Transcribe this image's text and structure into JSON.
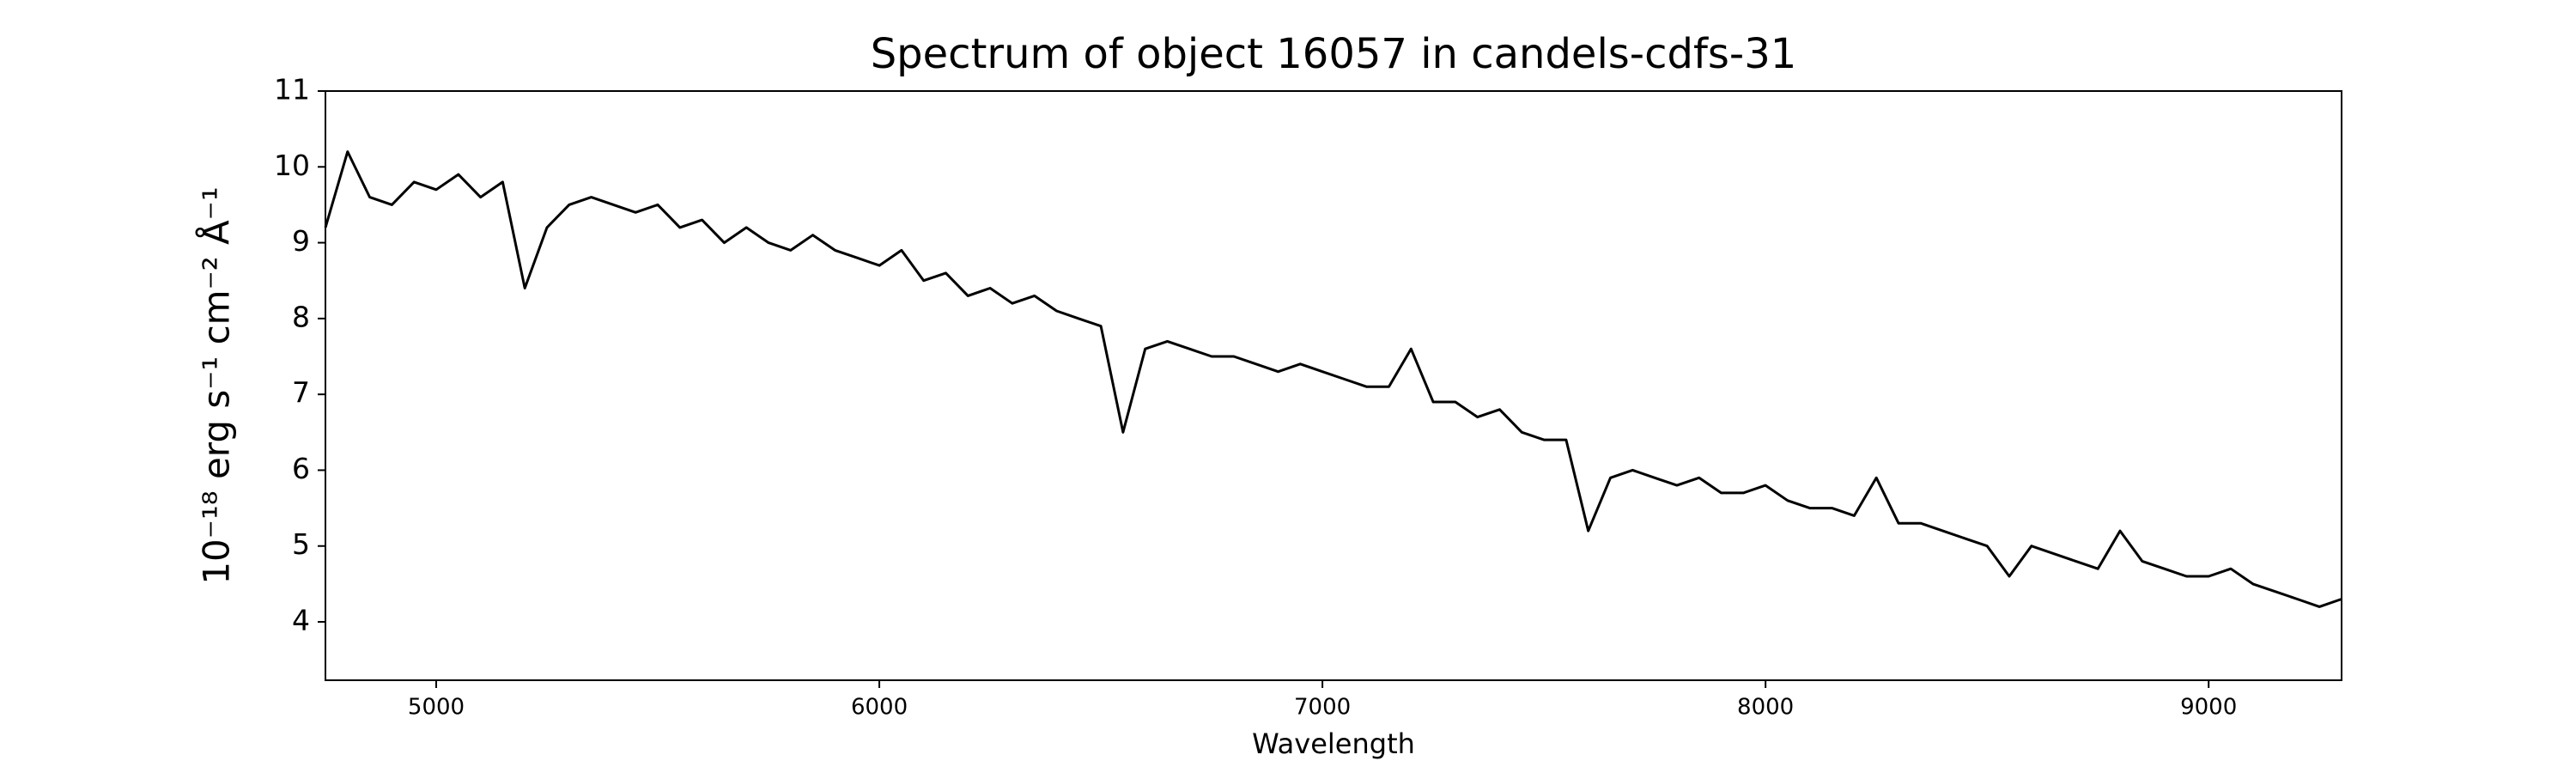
{
  "chart_data": {
    "type": "line",
    "title": "Spectrum of object 16057 in candels-cdfs-31",
    "xlabel": "Wavelength",
    "ylabel": "10⁻¹⁸ erg s⁻¹ cm⁻² Å⁻¹",
    "x": [
      4750,
      4800,
      4850,
      4900,
      4950,
      5000,
      5050,
      5100,
      5150,
      5200,
      5250,
      5300,
      5350,
      5400,
      5450,
      5500,
      5550,
      5600,
      5650,
      5700,
      5750,
      5800,
      5850,
      5900,
      5950,
      6000,
      6050,
      6100,
      6150,
      6200,
      6250,
      6300,
      6350,
      6400,
      6450,
      6500,
      6550,
      6600,
      6650,
      6700,
      6750,
      6800,
      6850,
      6900,
      6950,
      7000,
      7050,
      7100,
      7150,
      7200,
      7250,
      7300,
      7350,
      7400,
      7450,
      7500,
      7550,
      7600,
      7650,
      7700,
      7750,
      7800,
      7850,
      7900,
      7950,
      8000,
      8050,
      8100,
      8150,
      8200,
      8250,
      8300,
      8350,
      8400,
      8450,
      8500,
      8550,
      8600,
      8650,
      8700,
      8750,
      8800,
      8850,
      8900,
      8950,
      9000,
      9050,
      9100,
      9150,
      9200,
      9250,
      9300
    ],
    "series": [
      {
        "name": "spectrum",
        "color": "#000000",
        "values": [
          9.2,
          10.2,
          9.6,
          9.5,
          9.8,
          9.7,
          9.9,
          9.6,
          9.8,
          8.4,
          9.2,
          9.5,
          9.6,
          9.5,
          9.4,
          9.5,
          9.2,
          9.3,
          9.0,
          9.2,
          9.0,
          8.9,
          9.1,
          8.9,
          8.8,
          8.7,
          8.9,
          8.5,
          8.6,
          8.3,
          8.4,
          8.2,
          8.3,
          8.1,
          8.0,
          7.9,
          6.5,
          7.6,
          7.7,
          7.6,
          7.5,
          7.5,
          7.4,
          7.3,
          7.4,
          7.3,
          7.2,
          7.1,
          7.1,
          7.6,
          6.9,
          6.9,
          6.7,
          6.8,
          6.5,
          6.4,
          6.4,
          5.2,
          5.9,
          6.0,
          5.9,
          5.8,
          5.9,
          5.7,
          5.7,
          5.8,
          5.6,
          5.5,
          5.5,
          5.4,
          5.9,
          5.3,
          5.3,
          5.2,
          5.1,
          5.0,
          4.6,
          5.0,
          4.9,
          4.8,
          4.7,
          5.2,
          4.8,
          4.7,
          4.6,
          4.6,
          4.7,
          4.5,
          4.4,
          4.3,
          4.2,
          4.3
        ]
      }
    ],
    "xlim": [
      4750,
      9300
    ],
    "xticks": [
      5000,
      6000,
      7000,
      8000,
      9000
    ],
    "ylim": [
      3.23,
      11
    ],
    "yticks": [
      4,
      5,
      6,
      7,
      8,
      9,
      10,
      11
    ],
    "grid": false
  }
}
